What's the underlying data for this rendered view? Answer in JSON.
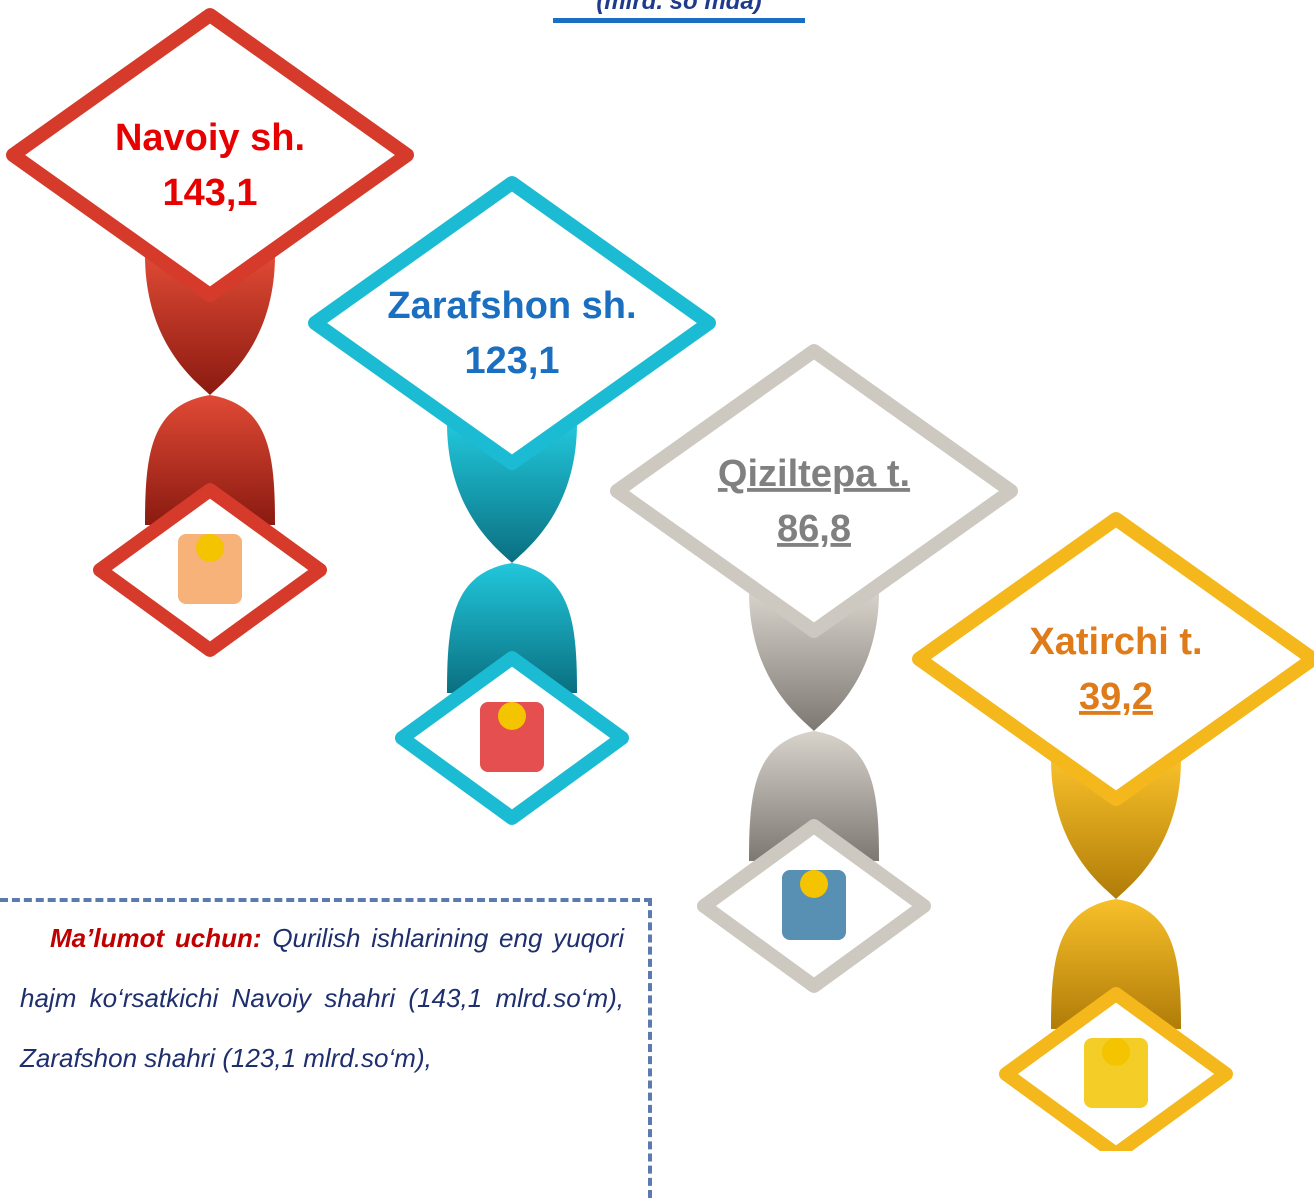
{
  "header": {
    "subtitle": "(mlrd. so‘mda)"
  },
  "items": [
    {
      "name": "Navoiy sh.",
      "value": "143,1"
    },
    {
      "name": "Zarafshon sh.",
      "value": "123,1"
    },
    {
      "name": "Qiziltepa t.",
      "value": "86,8"
    },
    {
      "name": "Xatirchi t.",
      "value": "39,2"
    }
  ],
  "note": {
    "lead": "Ma’lumot uchun:",
    "text": "Qurilish ishlarining eng yuqori hajm ko‘rsatkichi Navoiy shahri (143,1 mlrd.so‘m), Zarafshon shahri (123,1 mlrd.so‘m),"
  }
}
